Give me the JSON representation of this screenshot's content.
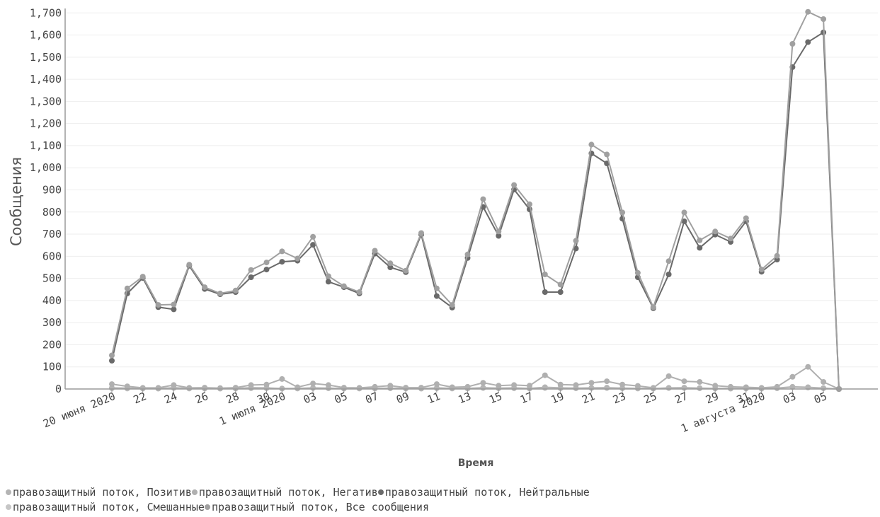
{
  "chart_data": {
    "type": "line",
    "xlabel": "Время",
    "ylabel": "Сообщения",
    "ylim": [
      0,
      1720
    ],
    "yticks": [
      "0",
      "100",
      "200",
      "300",
      "400",
      "500",
      "600",
      "700",
      "800",
      "900",
      "1,000",
      "1,100",
      "1,200",
      "1,300",
      "1,400",
      "1,500",
      "1,600",
      "1,700"
    ],
    "x": [
      "2020-06-20",
      "2020-06-21",
      "2020-06-22",
      "2020-06-23",
      "2020-06-24",
      "2020-06-25",
      "2020-06-26",
      "2020-06-27",
      "2020-06-28",
      "2020-06-29",
      "2020-06-30",
      "2020-07-01",
      "2020-07-02",
      "2020-07-03",
      "2020-07-04",
      "2020-07-05",
      "2020-07-06",
      "2020-07-07",
      "2020-07-08",
      "2020-07-09",
      "2020-07-10",
      "2020-07-11",
      "2020-07-12",
      "2020-07-13",
      "2020-07-14",
      "2020-07-15",
      "2020-07-16",
      "2020-07-17",
      "2020-07-18",
      "2020-07-19",
      "2020-07-20",
      "2020-07-21",
      "2020-07-22",
      "2020-07-23",
      "2020-07-24",
      "2020-07-25",
      "2020-07-26",
      "2020-07-27",
      "2020-07-28",
      "2020-07-29",
      "2020-07-30",
      "2020-07-31",
      "2020-08-01",
      "2020-08-02",
      "2020-08-03",
      "2020-08-04",
      "2020-08-05",
      "2020-08-06"
    ],
    "xticks": [
      {
        "index": 0,
        "label": "20 июня 2020"
      },
      {
        "index": 2,
        "label": "22"
      },
      {
        "index": 4,
        "label": "24"
      },
      {
        "index": 6,
        "label": "26"
      },
      {
        "index": 8,
        "label": "28"
      },
      {
        "index": 10,
        "label": "30"
      },
      {
        "index": 11,
        "label": "1 июля 2020"
      },
      {
        "index": 13,
        "label": "03"
      },
      {
        "index": 15,
        "label": "05"
      },
      {
        "index": 17,
        "label": "07"
      },
      {
        "index": 19,
        "label": "09"
      },
      {
        "index": 21,
        "label": "11"
      },
      {
        "index": 23,
        "label": "13"
      },
      {
        "index": 25,
        "label": "15"
      },
      {
        "index": 27,
        "label": "17"
      },
      {
        "index": 29,
        "label": "19"
      },
      {
        "index": 31,
        "label": "21"
      },
      {
        "index": 33,
        "label": "23"
      },
      {
        "index": 35,
        "label": "25"
      },
      {
        "index": 37,
        "label": "27"
      },
      {
        "index": 39,
        "label": "29"
      },
      {
        "index": 41,
        "label": "31"
      },
      {
        "index": 42,
        "label": "1 августа 2020"
      },
      {
        "index": 44,
        "label": "03"
      },
      {
        "index": 46,
        "label": "05"
      }
    ],
    "series": [
      {
        "name": "правозащитный поток, Позитив",
        "color": "#b4b4b4",
        "values": [
          5,
          4,
          3,
          2,
          6,
          3,
          3,
          2,
          3,
          6,
          5,
          2,
          3,
          5,
          4,
          2,
          3,
          3,
          4,
          3,
          2,
          5,
          3,
          3,
          6,
          4,
          5,
          3,
          8,
          5,
          4,
          5,
          6,
          4,
          3,
          2,
          5,
          6,
          4,
          3,
          2,
          3,
          2,
          4,
          10,
          8,
          4,
          0
        ]
      },
      {
        "name": "правозащитный поток, Негатив",
        "color": "#b0b0b0",
        "values": [
          22,
          12,
          5,
          5,
          18,
          5,
          6,
          4,
          6,
          18,
          20,
          45,
          8,
          25,
          18,
          6,
          5,
          10,
          15,
          6,
          6,
          22,
          8,
          10,
          28,
          15,
          18,
          15,
          62,
          20,
          18,
          28,
          35,
          20,
          14,
          5,
          58,
          35,
          32,
          15,
          10,
          8,
          5,
          10,
          55,
          100,
          32,
          0
        ]
      },
      {
        "name": "правозащитный поток, Нейтральные",
        "color": "#6a6a6a",
        "values": [
          128,
          432,
          502,
          370,
          360,
          557,
          452,
          428,
          438,
          505,
          540,
          575,
          580,
          652,
          485,
          460,
          432,
          612,
          550,
          528,
          698,
          420,
          368,
          592,
          823,
          692,
          902,
          812,
          438,
          438,
          635,
          1065,
          1020,
          770,
          505,
          365,
          518,
          758,
          638,
          698,
          665,
          758,
          530,
          585,
          1455,
          1568,
          1612,
          0
        ]
      },
      {
        "name": "правозащитный поток, Смешанные",
        "color": "#c6c6c6",
        "values": [
          3,
          2,
          2,
          2,
          4,
          2,
          2,
          2,
          2,
          3,
          3,
          2,
          2,
          4,
          3,
          2,
          2,
          2,
          3,
          2,
          2,
          3,
          2,
          2,
          4,
          3,
          3,
          2,
          4,
          3,
          3,
          4,
          4,
          3,
          2,
          2,
          4,
          4,
          3,
          2,
          2,
          2,
          2,
          3,
          8,
          6,
          3,
          0
        ]
      },
      {
        "name": "правозащитный поток, Все сообщения",
        "color": "#a0a0a0",
        "values": [
          152,
          455,
          508,
          380,
          382,
          562,
          460,
          432,
          445,
          538,
          572,
          622,
          590,
          688,
          510,
          465,
          438,
          625,
          568,
          535,
          705,
          455,
          380,
          608,
          858,
          712,
          922,
          835,
          518,
          472,
          670,
          1105,
          1060,
          798,
          525,
          370,
          578,
          798,
          672,
          712,
          680,
          772,
          540,
          602,
          1560,
          1705,
          1672,
          0
        ]
      }
    ]
  }
}
